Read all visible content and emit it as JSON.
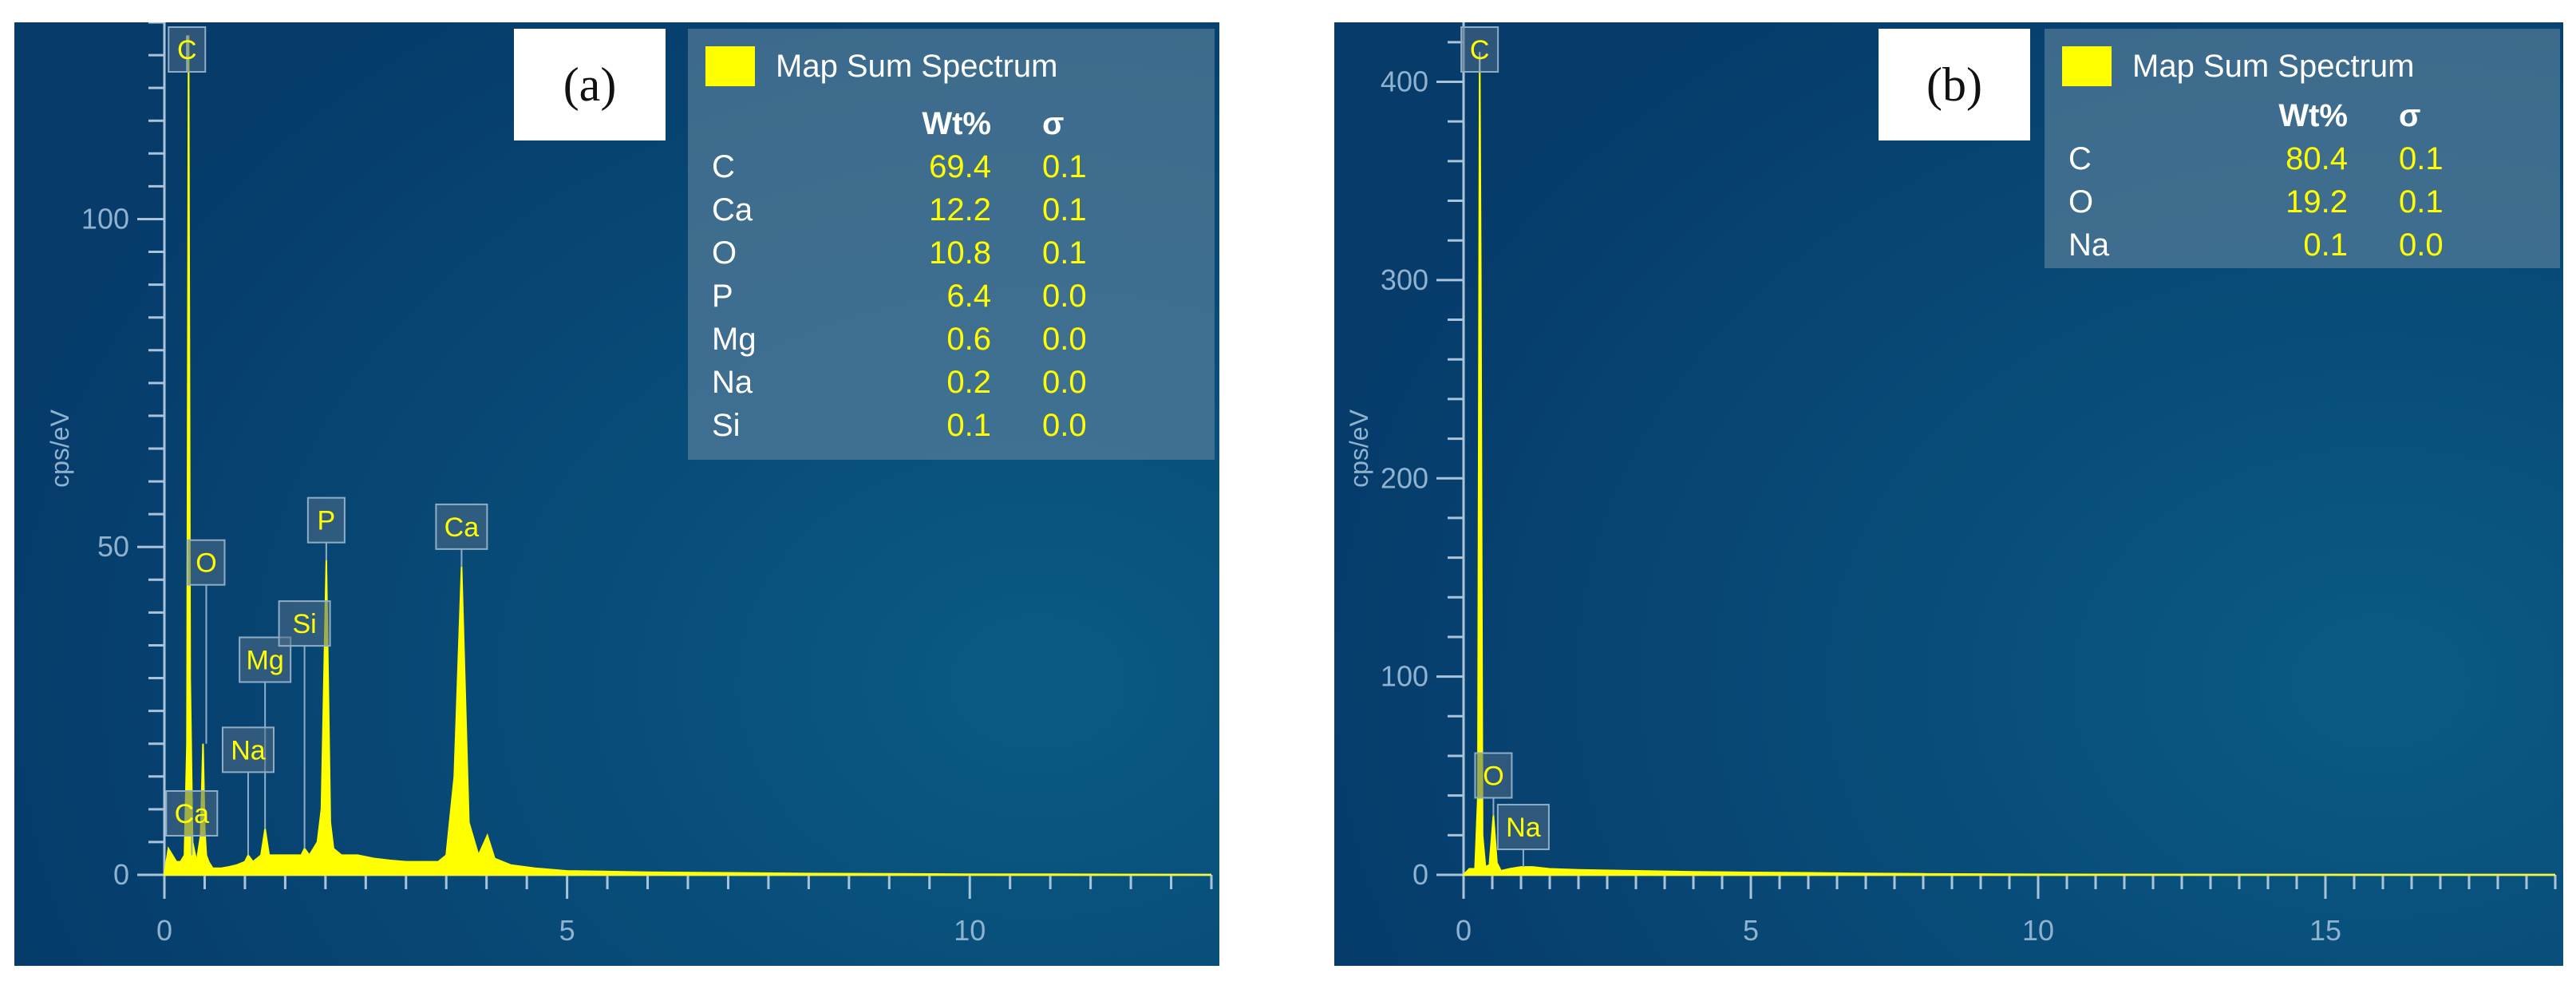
{
  "chart_data": [
    {
      "type": "line",
      "panel_label": "(a)",
      "ylabel": "cps/eV",
      "xlim": [
        0,
        13
      ],
      "ylim": [
        0,
        130
      ],
      "x_ticks": [
        0,
        5,
        10
      ],
      "y_ticks": [
        0,
        50,
        100
      ],
      "x_minor_step": 0.5,
      "y_minor_step": 5,
      "series": [
        {
          "name": "Map Sum Spectrum",
          "color": "#ffff00",
          "x": [
            0.0,
            0.05,
            0.1,
            0.15,
            0.2,
            0.25,
            0.28,
            0.3,
            0.32,
            0.35,
            0.4,
            0.45,
            0.48,
            0.5,
            0.52,
            0.55,
            0.6,
            0.7,
            0.8,
            0.9,
            1.0,
            1.04,
            1.1,
            1.2,
            1.25,
            1.3,
            1.4,
            1.5,
            1.6,
            1.7,
            1.74,
            1.8,
            1.9,
            1.95,
            2.01,
            2.06,
            2.1,
            2.2,
            2.4,
            2.6,
            2.8,
            3.0,
            3.2,
            3.4,
            3.5,
            3.6,
            3.69,
            3.78,
            3.9,
            4.01,
            4.1,
            4.3,
            4.6,
            5.0,
            6.0,
            7.0,
            8.0,
            9.0,
            10.0,
            11.0,
            12.0,
            13.0
          ],
          "values": [
            0,
            4,
            3,
            2,
            2,
            3,
            20,
            128,
            30,
            5,
            2,
            6,
            20,
            7,
            3,
            2,
            1,
            1,
            1.2,
            1.5,
            2,
            3,
            2,
            3,
            7,
            3,
            3,
            3,
            3,
            3,
            4,
            3,
            5,
            10,
            48,
            8,
            4,
            3,
            3,
            2.5,
            2.2,
            2,
            2,
            2,
            3,
            15,
            47,
            8,
            3,
            6,
            2.5,
            1.5,
            1,
            0.6,
            0.4,
            0.3,
            0.2,
            0.15,
            0.1,
            0.1,
            0.05,
            0
          ]
        }
      ],
      "peak_labels": [
        {
          "label": "C",
          "x": 0.28,
          "value": 128
        },
        {
          "label": "O",
          "x": 0.52,
          "value": 20
        },
        {
          "label": "Mg",
          "x": 1.25,
          "value": 7
        },
        {
          "label": "Na",
          "x": 1.04,
          "value": 3
        },
        {
          "label": "Si",
          "x": 1.74,
          "value": 4
        },
        {
          "label": "P",
          "x": 2.01,
          "value": 48
        },
        {
          "label": "Ca",
          "x": 3.69,
          "value": 47
        },
        {
          "label": "Ca",
          "x": 0.34,
          "value": 3
        }
      ],
      "legend": {
        "title": "Map Sum Spectrum",
        "col_wt": "Wt%",
        "col_sigma": "σ",
        "rows": [
          {
            "element": "C",
            "wt": "69.4",
            "sigma": "0.1"
          },
          {
            "element": "Ca",
            "wt": "12.2",
            "sigma": "0.1"
          },
          {
            "element": "O",
            "wt": "10.8",
            "sigma": "0.1"
          },
          {
            "element": "P",
            "wt": "6.4",
            "sigma": "0.0"
          },
          {
            "element": "Mg",
            "wt": "0.6",
            "sigma": "0.0"
          },
          {
            "element": "Na",
            "wt": "0.2",
            "sigma": "0.0"
          },
          {
            "element": "Si",
            "wt": "0.1",
            "sigma": "0.0"
          }
        ]
      }
    },
    {
      "type": "line",
      "panel_label": "(b)",
      "ylabel": "cps/eV",
      "xlim": [
        0,
        19
      ],
      "ylim": [
        0,
        430
      ],
      "x_ticks": [
        0,
        5,
        10,
        15
      ],
      "y_ticks": [
        0,
        100,
        200,
        300,
        400
      ],
      "x_minor_step": 0.5,
      "y_minor_step": 20,
      "series": [
        {
          "name": "Map Sum Spectrum",
          "color": "#ffff00",
          "x": [
            0.0,
            0.1,
            0.2,
            0.25,
            0.28,
            0.3,
            0.33,
            0.38,
            0.45,
            0.52,
            0.58,
            0.65,
            0.8,
            1.0,
            1.2,
            1.5,
            2.0,
            3.0,
            4.0,
            5.0,
            6.0,
            7.0,
            8.0,
            9.5,
            11.0,
            13.0,
            15.0,
            17.0,
            19.0
          ],
          "values": [
            0,
            3,
            3,
            40,
            415,
            300,
            20,
            4,
            5,
            30,
            6,
            2,
            3,
            4,
            4,
            3,
            2.5,
            2,
            1.5,
            1.2,
            1,
            0.7,
            0.5,
            0.3,
            0.2,
            0.1,
            0.05,
            0,
            0
          ]
        }
      ],
      "peak_labels": [
        {
          "label": "C",
          "x": 0.28,
          "value": 415
        },
        {
          "label": "O",
          "x": 0.52,
          "value": 30
        },
        {
          "label": "Na",
          "x": 1.04,
          "value": 4
        }
      ],
      "legend": {
        "title": "Map Sum Spectrum",
        "col_wt": "Wt%",
        "col_sigma": "σ",
        "rows": [
          {
            "element": "C",
            "wt": "80.4",
            "sigma": "0.1"
          },
          {
            "element": "O",
            "wt": "19.2",
            "sigma": "0.1"
          },
          {
            "element": "Na",
            "wt": "0.1",
            "sigma": "0.0"
          }
        ]
      }
    }
  ]
}
